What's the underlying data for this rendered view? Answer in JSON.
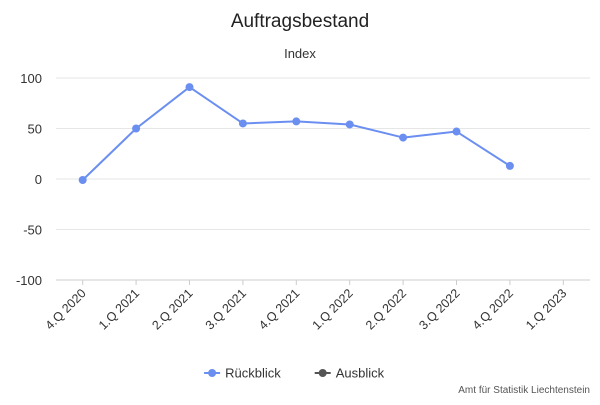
{
  "chart_data": {
    "type": "line",
    "title": "Auftragsbestand",
    "subtitle": "Index",
    "xlabel": "",
    "ylabel": "",
    "categories": [
      "4.Q 2020",
      "1.Q 2021",
      "2.Q 2021",
      "3.Q 2021",
      "4.Q 2021",
      "1.Q 2022",
      "2.Q 2022",
      "3.Q 2022",
      "4.Q 2022",
      "1.Q 2023"
    ],
    "ylim": [
      -100,
      100
    ],
    "yticks": [
      100,
      50,
      0,
      -50,
      -100
    ],
    "grid": true,
    "legend_position": "bottom-center",
    "series": [
      {
        "name": "Rückblick",
        "color": "#6b8ff0",
        "values": [
          -1,
          50,
          91,
          55,
          57,
          54,
          41,
          47,
          13,
          null
        ]
      },
      {
        "name": "Ausblick",
        "color": "#555555",
        "values": [
          null,
          null,
          null,
          null,
          null,
          null,
          null,
          null,
          null,
          null
        ]
      }
    ],
    "credits": "Amt für Statistik Liechtenstein"
  }
}
